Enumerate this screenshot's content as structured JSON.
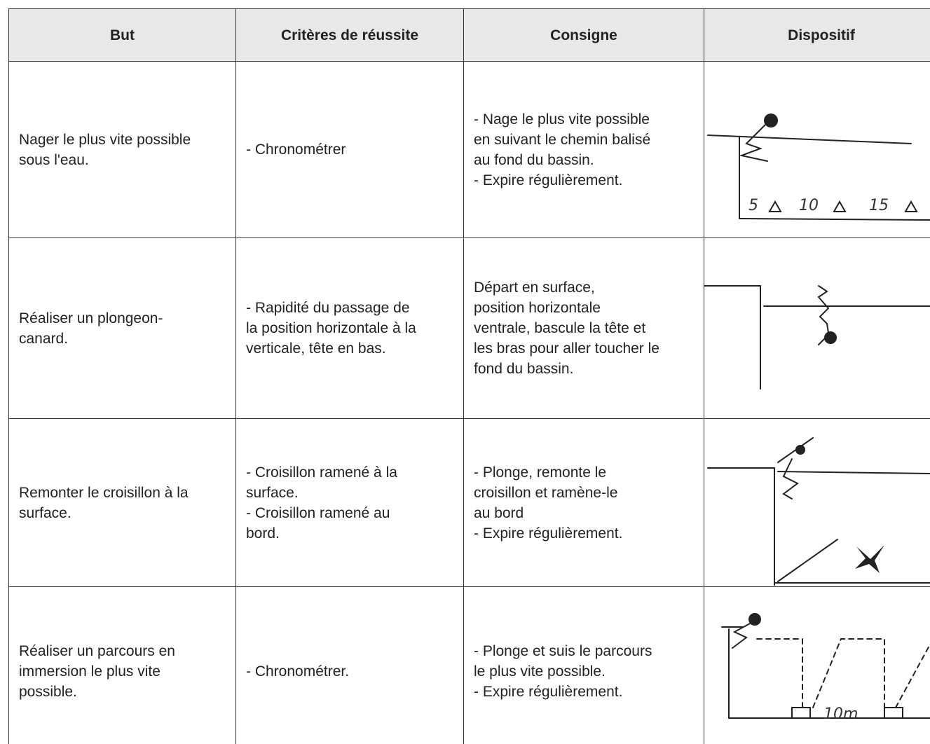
{
  "table": {
    "header": [
      "But",
      "Critères de réussite",
      "Consigne",
      "Dispositif"
    ],
    "rows": [
      [
        [
          "Nager le plus vite possible",
          "sous l'eau."
        ],
        [
          "- Chronométrer"
        ],
        [
          "- Nage le plus vite possible",
          "en suivant le chemin balisé",
          "au fond du bassin.",
          "- Expire régulièrement."
        ]
      ],
      [
        [
          "Réaliser un plongeon-",
          "canard."
        ],
        [
          "- Rapidité du passage de",
          "la position horizontale à la",
          "verticale, tête en bas."
        ],
        [
          "Départ en surface,",
          "position horizontale",
          "ventrale, bascule la tête et",
          "les bras pour aller toucher le",
          "fond du bassin."
        ]
      ],
      [
        [
          "Remonter le croisillon à la",
          "surface."
        ],
        [
          "- Croisillon ramené à la",
          "surface.",
          "- Croisillon ramené au",
          "bord."
        ],
        [
          "- Plonge, remonte le",
          "croisillon et ramène-le",
          "au bord",
          "- Expire régulièrement."
        ]
      ],
      [
        [
          "Réaliser un parcours en",
          "immersion le plus vite",
          "possible."
        ],
        [
          "- Chronométrer."
        ],
        [
          "- Plonge et suis le parcours",
          "le plus vite possible.",
          "- Expire régulièrement."
        ]
      ]
    ]
  },
  "sketch_labels": {
    "row_1": [
      "5",
      "10",
      "15"
    ],
    "row_4": [
      "10m"
    ]
  }
}
